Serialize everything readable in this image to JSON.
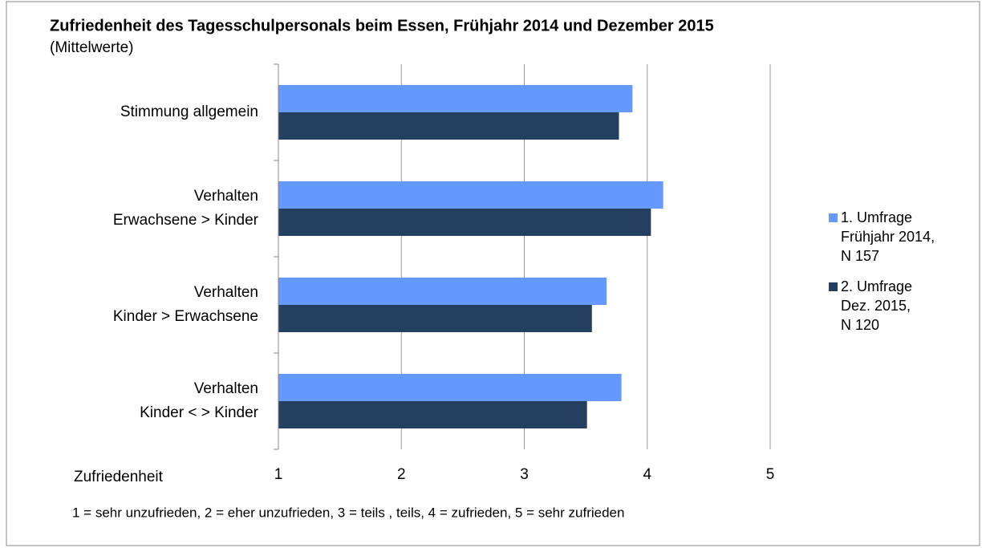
{
  "chart_data": {
    "type": "barh",
    "title": "Zufriedenheit  des Tagesschulpersonals beim Essen, Frühjahr 2014 und Dezember 2015",
    "subtitle": "(Mittelwerte)",
    "x_label": "Zufriedenheit",
    "note": "1 = sehr unzufrieden, 2 = eher unzufrieden, 3 = teils , teils, 4 = zufrieden, 5 = sehr zufrieden",
    "categories": [
      "Stimmung allgemein",
      "Verhalten\nErwachsene > Kinder",
      "Verhalten\nKinder > Erwachsene",
      "Verhalten\nKinder < > Kinder"
    ],
    "series": [
      {
        "name": "1. Umfrage\nFrühjahr 2014,\nN 157",
        "color": "#6699ff",
        "values": [
          3.88,
          4.13,
          3.67,
          3.79
        ]
      },
      {
        "name": "2. Umfrage\nDez. 2015,\nN 120",
        "color": "#243f60",
        "values": [
          3.77,
          4.03,
          3.55,
          3.51
        ]
      }
    ],
    "xlim": [
      1,
      5
    ],
    "xticks": [
      1,
      2,
      3,
      4,
      5
    ],
    "grid": true,
    "legend": "right"
  }
}
